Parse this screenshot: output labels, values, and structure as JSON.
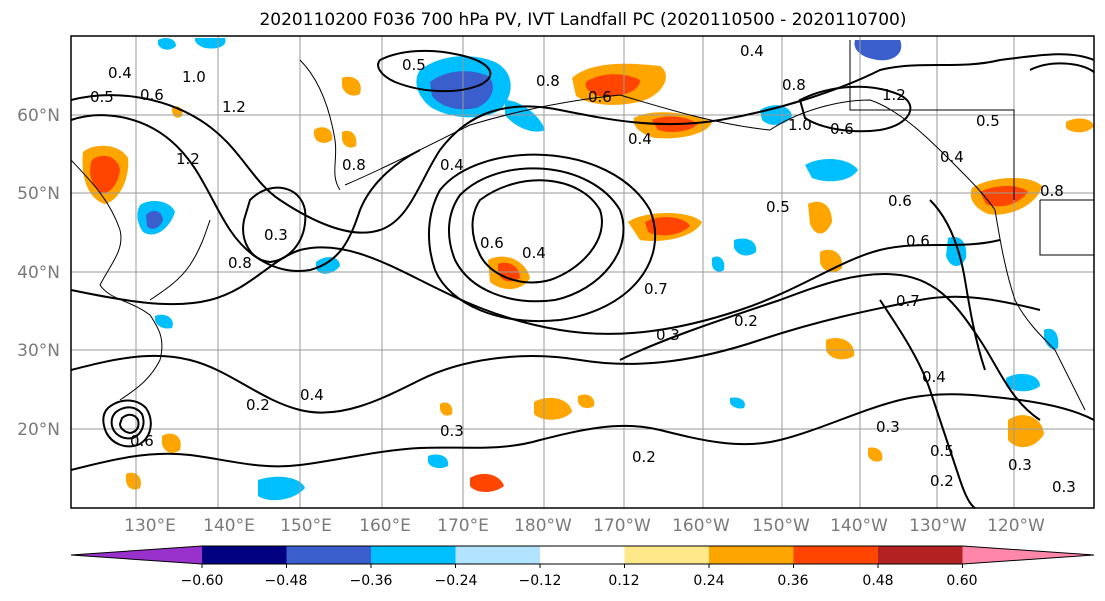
{
  "title": "2020110200 F036 700 hPa PV, IVT Landfall PC (2020110500 - 2020110700)",
  "map": {
    "lat_labels": [
      "60°N",
      "50°N",
      "40°N",
      "30°N",
      "20°N"
    ],
    "lon_labels": [
      "130°E",
      "140°E",
      "150°E",
      "160°E",
      "170°E",
      "180°W",
      "170°W",
      "160°W",
      "150°W",
      "140°W",
      "130°W",
      "120°W"
    ],
    "contour_labels": [
      "0.4",
      "0.5",
      "0.6",
      "1.0",
      "1.2",
      "0.5",
      "0.8",
      "0.6",
      "0.4",
      "0.8",
      "0.4",
      "1.0",
      "0.8",
      "0.6",
      "1.2",
      "0.5",
      "0.4",
      "0.6",
      "0.8",
      "1.2",
      "0.3",
      "0.4",
      "0.6",
      "0.4",
      "0.7",
      "0.3",
      "0.2",
      "0.7",
      "0.6",
      "0.5",
      "0.2",
      "0.4",
      "0.3",
      "0.2",
      "0.3",
      "0.4",
      "0.5",
      "0.2",
      "0.3",
      "0.3",
      "0.6",
      "0.8"
    ]
  },
  "colorbar": {
    "ticks": [
      "−0.60",
      "−0.48",
      "−0.36",
      "−0.24",
      "−0.12",
      "0.12",
      "0.24",
      "0.36",
      "0.48",
      "0.60"
    ],
    "colors": [
      "#9932cc",
      "#000080",
      "#3a5fcd",
      "#00bfff",
      "#b2e3ff",
      "#ffffff",
      "#ffe88a",
      "#ffa500",
      "#ff4500",
      "#b22222",
      "#ff88aa"
    ]
  },
  "shading_colors": {
    "pos_light": "#ffe88a",
    "pos_mid": "#ffa500",
    "pos_strong": "#ff4500",
    "neg_light": "#b2e3ff",
    "neg_mid": "#00bfff",
    "neg_strong": "#3a5fcd",
    "neg_deep": "#000080"
  }
}
